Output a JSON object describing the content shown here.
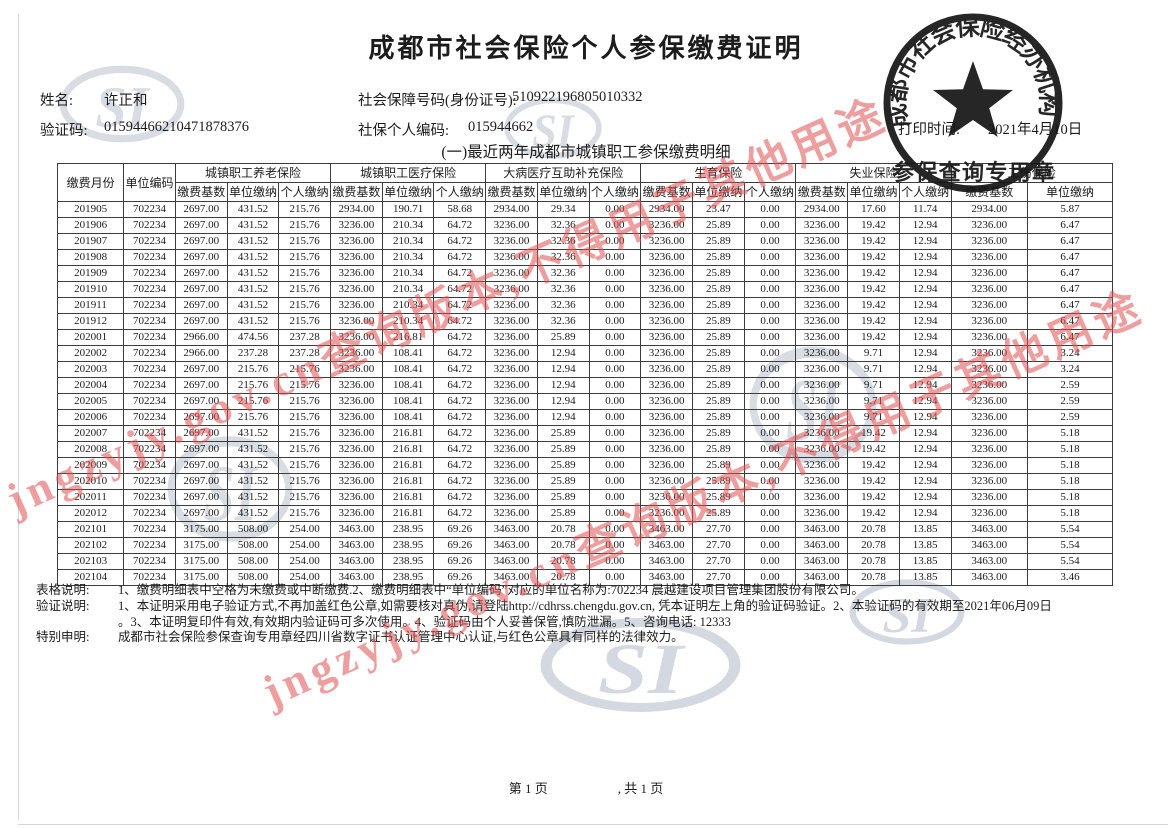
{
  "title": "成都市社会保险个人参保缴费证明",
  "subtitle": "(一)最近两年成都市城镇职工参保缴费明细",
  "info": {
    "name_label": "姓名:",
    "name": "许正和",
    "ssn_label": "社会保障号码(身份证号):",
    "ssn": "510922196805010332",
    "verify_label": "验证码:",
    "verify_code": "01594466210471878376",
    "personal_code_label": "社保个人编码:",
    "personal_code": "015944662",
    "print_label": "打印时间:",
    "print_date": "2021年4月10日"
  },
  "table": {
    "month_col": "缴费月份",
    "unit_col": "单位编码",
    "groups": [
      {
        "name": "城镇职工养老保险",
        "cols": [
          "缴费基数",
          "单位缴纳",
          "个人缴纳"
        ]
      },
      {
        "name": "城镇职工医疗保险",
        "cols": [
          "缴费基数",
          "单位缴纳",
          "个人缴纳"
        ]
      },
      {
        "name": "大病医疗互助补充保险",
        "cols": [
          "缴费基数",
          "单位缴纳",
          "个人缴纳"
        ]
      },
      {
        "name": "生育保险",
        "cols": [
          "缴费基数",
          "单位缴纳",
          "个人缴纳"
        ]
      },
      {
        "name": "失业保险",
        "cols": [
          "缴费基数",
          "单位缴纳",
          "个人缴纳"
        ]
      },
      {
        "name": "工伤保险",
        "cols": [
          "缴费基数",
          "单位缴纳"
        ]
      }
    ],
    "rows": [
      [
        "201905",
        "702234",
        "2697.00",
        "431.52",
        "215.76",
        "2934.00",
        "190.71",
        "58.68",
        "2934.00",
        "29.34",
        "0.00",
        "2934.00",
        "23.47",
        "0.00",
        "2934.00",
        "17.60",
        "11.74",
        "2934.00",
        "5.87"
      ],
      [
        "201906",
        "702234",
        "2697.00",
        "431.52",
        "215.76",
        "3236.00",
        "210.34",
        "64.72",
        "3236.00",
        "32.36",
        "0.00",
        "3236.00",
        "25.89",
        "0.00",
        "3236.00",
        "19.42",
        "12.94",
        "3236.00",
        "6.47"
      ],
      [
        "201907",
        "702234",
        "2697.00",
        "431.52",
        "215.76",
        "3236.00",
        "210.34",
        "64.72",
        "3236.00",
        "32.36",
        "0.00",
        "3236.00",
        "25.89",
        "0.00",
        "3236.00",
        "19.42",
        "12.94",
        "3236.00",
        "6.47"
      ],
      [
        "201908",
        "702234",
        "2697.00",
        "431.52",
        "215.76",
        "3236.00",
        "210.34",
        "64.72",
        "3236.00",
        "32.36",
        "0.00",
        "3236.00",
        "25.89",
        "0.00",
        "3236.00",
        "19.42",
        "12.94",
        "3236.00",
        "6.47"
      ],
      [
        "201909",
        "702234",
        "2697.00",
        "431.52",
        "215.76",
        "3236.00",
        "210.34",
        "64.72",
        "3236.00",
        "32.36",
        "0.00",
        "3236.00",
        "25.89",
        "0.00",
        "3236.00",
        "19.42",
        "12.94",
        "3236.00",
        "6.47"
      ],
      [
        "201910",
        "702234",
        "2697.00",
        "431.52",
        "215.76",
        "3236.00",
        "210.34",
        "64.72",
        "3236.00",
        "32.36",
        "0.00",
        "3236.00",
        "25.89",
        "0.00",
        "3236.00",
        "19.42",
        "12.94",
        "3236.00",
        "6.47"
      ],
      [
        "201911",
        "702234",
        "2697.00",
        "431.52",
        "215.76",
        "3236.00",
        "210.34",
        "64.72",
        "3236.00",
        "32.36",
        "0.00",
        "3236.00",
        "25.89",
        "0.00",
        "3236.00",
        "19.42",
        "12.94",
        "3236.00",
        "6.47"
      ],
      [
        "201912",
        "702234",
        "2697.00",
        "431.52",
        "215.76",
        "3236.00",
        "210.34",
        "64.72",
        "3236.00",
        "32.36",
        "0.00",
        "3236.00",
        "25.89",
        "0.00",
        "3236.00",
        "19.42",
        "12.94",
        "3236.00",
        "6.47"
      ],
      [
        "202001",
        "702234",
        "2966.00",
        "474.56",
        "237.28",
        "3236.00",
        "216.81",
        "64.72",
        "3236.00",
        "25.89",
        "0.00",
        "3236.00",
        "25.89",
        "0.00",
        "3236.00",
        "19.42",
        "12.94",
        "3236.00",
        "6.47"
      ],
      [
        "202002",
        "702234",
        "2966.00",
        "237.28",
        "237.28",
        "3236.00",
        "108.41",
        "64.72",
        "3236.00",
        "12.94",
        "0.00",
        "3236.00",
        "25.89",
        "0.00",
        "3236.00",
        "9.71",
        "12.94",
        "3236.00",
        "3.24"
      ],
      [
        "202003",
        "702234",
        "2697.00",
        "215.76",
        "215.76",
        "3236.00",
        "108.41",
        "64.72",
        "3236.00",
        "12.94",
        "0.00",
        "3236.00",
        "25.89",
        "0.00",
        "3236.00",
        "9.71",
        "12.94",
        "3236.00",
        "3.24"
      ],
      [
        "202004",
        "702234",
        "2697.00",
        "215.76",
        "215.76",
        "3236.00",
        "108.41",
        "64.72",
        "3236.00",
        "12.94",
        "0.00",
        "3236.00",
        "25.89",
        "0.00",
        "3236.00",
        "9.71",
        "12.94",
        "3236.00",
        "2.59"
      ],
      [
        "202005",
        "702234",
        "2697.00",
        "215.76",
        "215.76",
        "3236.00",
        "108.41",
        "64.72",
        "3236.00",
        "12.94",
        "0.00",
        "3236.00",
        "25.89",
        "0.00",
        "3236.00",
        "9.71",
        "12.94",
        "3236.00",
        "2.59"
      ],
      [
        "202006",
        "702234",
        "2697.00",
        "215.76",
        "215.76",
        "3236.00",
        "108.41",
        "64.72",
        "3236.00",
        "12.94",
        "0.00",
        "3236.00",
        "25.89",
        "0.00",
        "3236.00",
        "9.71",
        "12.94",
        "3236.00",
        "2.59"
      ],
      [
        "202007",
        "702234",
        "2697.00",
        "431.52",
        "215.76",
        "3236.00",
        "216.81",
        "64.72",
        "3236.00",
        "25.89",
        "0.00",
        "3236.00",
        "25.89",
        "0.00",
        "3236.00",
        "19.42",
        "12.94",
        "3236.00",
        "5.18"
      ],
      [
        "202008",
        "702234",
        "2697.00",
        "431.52",
        "215.76",
        "3236.00",
        "216.81",
        "64.72",
        "3236.00",
        "25.89",
        "0.00",
        "3236.00",
        "25.89",
        "0.00",
        "3236.00",
        "19.42",
        "12.94",
        "3236.00",
        "5.18"
      ],
      [
        "202009",
        "702234",
        "2697.00",
        "431.52",
        "215.76",
        "3236.00",
        "216.81",
        "64.72",
        "3236.00",
        "25.89",
        "0.00",
        "3236.00",
        "25.89",
        "0.00",
        "3236.00",
        "19.42",
        "12.94",
        "3236.00",
        "5.18"
      ],
      [
        "202010",
        "702234",
        "2697.00",
        "431.52",
        "215.76",
        "3236.00",
        "216.81",
        "64.72",
        "3236.00",
        "25.89",
        "0.00",
        "3236.00",
        "25.89",
        "0.00",
        "3236.00",
        "19.42",
        "12.94",
        "3236.00",
        "5.18"
      ],
      [
        "202011",
        "702234",
        "2697.00",
        "431.52",
        "215.76",
        "3236.00",
        "216.81",
        "64.72",
        "3236.00",
        "25.89",
        "0.00",
        "3236.00",
        "25.89",
        "0.00",
        "3236.00",
        "19.42",
        "12.94",
        "3236.00",
        "5.18"
      ],
      [
        "202012",
        "702234",
        "2697.00",
        "431.52",
        "215.76",
        "3236.00",
        "216.81",
        "64.72",
        "3236.00",
        "25.89",
        "0.00",
        "3236.00",
        "25.89",
        "0.00",
        "3236.00",
        "19.42",
        "12.94",
        "3236.00",
        "5.18"
      ],
      [
        "202101",
        "702234",
        "3175.00",
        "508.00",
        "254.00",
        "3463.00",
        "238.95",
        "69.26",
        "3463.00",
        "20.78",
        "0.00",
        "3463.00",
        "27.70",
        "0.00",
        "3463.00",
        "20.78",
        "13.85",
        "3463.00",
        "5.54"
      ],
      [
        "202102",
        "702234",
        "3175.00",
        "508.00",
        "254.00",
        "3463.00",
        "238.95",
        "69.26",
        "3463.00",
        "20.78",
        "0.00",
        "3463.00",
        "27.70",
        "0.00",
        "3463.00",
        "20.78",
        "13.85",
        "3463.00",
        "5.54"
      ],
      [
        "202103",
        "702234",
        "3175.00",
        "508.00",
        "254.00",
        "3463.00",
        "238.95",
        "69.26",
        "3463.00",
        "20.78",
        "0.00",
        "3463.00",
        "27.70",
        "0.00",
        "3463.00",
        "20.78",
        "13.85",
        "3463.00",
        "5.54"
      ],
      [
        "202104",
        "702234",
        "3175.00",
        "508.00",
        "254.00",
        "3463.00",
        "238.95",
        "69.26",
        "3463.00",
        "20.78",
        "0.00",
        "3463.00",
        "27.70",
        "0.00",
        "3463.00",
        "20.78",
        "13.85",
        "3463.00",
        "3.46"
      ]
    ]
  },
  "notes": [
    {
      "label": "表格说明:",
      "text": "1、缴费明细表中空格为未缴费或中断缴费.2、缴费明细表中“单位编码”对应的单位名称为:702234 晨越建设项目管理集团股份有限公司。"
    },
    {
      "label": "验证说明:",
      "text": "1、本证明采用电子验证方式,不再加盖红色公章,如需要核对真伪,请登陆http://cdhrss.chengdu.gov.cn, 凭本证明左上角的验证码验证。2、本验证码的有效期至2021年06月09日"
    },
    {
      "label": "",
      "text": "。3、本证明复印件有效,有效期内验证码可多次使用。4、验证码由个人妥善保管,慎防泄漏。5、咨询电话: 12333"
    },
    {
      "label": "特别申明:",
      "text": "成都市社会保险参保查询专用章经四川省数字证书认证管理中心认证,与红色公章具有同样的法律效力。"
    }
  ],
  "page_footer": {
    "page": "第 1 页",
    "total": ", 共 1 页"
  },
  "seal": {
    "ring_text": "成都市社会保险经办机构",
    "bottom_text": "参保查询专用章",
    "color": "#141414"
  },
  "watermark": {
    "text": "jngzyjy.gov.cn查询版本,不得用于其他用途",
    "color": "#de5050"
  },
  "logo_text": "SI",
  "logo_color": "#b2bac8"
}
